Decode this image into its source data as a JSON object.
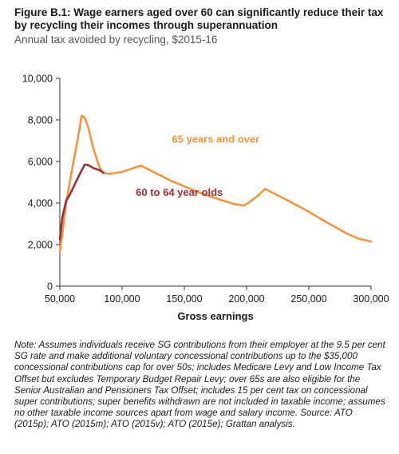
{
  "figure": {
    "title": "Figure B.1: Wage earners aged over 60 can significantly reduce their tax by recycling their incomes through superannuation",
    "subtitle": "Annual tax avoided by recycling, $2015-16"
  },
  "chart_data": {
    "type": "line",
    "xlabel": "Gross earnings",
    "ylabel": "",
    "xlim": [
      50000,
      300000
    ],
    "ylim": [
      0,
      10000
    ],
    "x_ticks": [
      50000,
      100000,
      150000,
      200000,
      250000,
      300000
    ],
    "x_tick_labels": [
      "50,000",
      "100,000",
      "150,000",
      "200,000",
      "250,000",
      "300,000"
    ],
    "y_ticks": [
      0,
      2000,
      4000,
      6000,
      8000,
      10000
    ],
    "y_tick_labels": [
      "0",
      "2,000",
      "4,000",
      "6,000",
      "8,000",
      "10,000"
    ],
    "grid": false,
    "series": [
      {
        "name": "65 years and over",
        "color": "#F3963A",
        "points": [
          [
            50000,
            1650
          ],
          [
            52000,
            2500
          ],
          [
            55000,
            4000
          ],
          [
            60000,
            5700
          ],
          [
            65000,
            7300
          ],
          [
            67500,
            8200
          ],
          [
            70000,
            8100
          ],
          [
            73000,
            7600
          ],
          [
            77000,
            6600
          ],
          [
            82000,
            5700
          ],
          [
            85000,
            5450
          ],
          [
            90000,
            5400
          ],
          [
            100000,
            5500
          ],
          [
            110000,
            5700
          ],
          [
            115000,
            5800
          ],
          [
            120000,
            5650
          ],
          [
            130000,
            5350
          ],
          [
            140000,
            5050
          ],
          [
            150000,
            4800
          ],
          [
            160000,
            4550
          ],
          [
            170000,
            4330
          ],
          [
            180000,
            4140
          ],
          [
            190000,
            3950
          ],
          [
            198000,
            3880
          ],
          [
            202000,
            4030
          ],
          [
            210000,
            4400
          ],
          [
            215000,
            4680
          ],
          [
            220000,
            4520
          ],
          [
            230000,
            4220
          ],
          [
            240000,
            3900
          ],
          [
            250000,
            3580
          ],
          [
            260000,
            3220
          ],
          [
            270000,
            2880
          ],
          [
            280000,
            2550
          ],
          [
            290000,
            2280
          ],
          [
            300000,
            2150
          ]
        ]
      },
      {
        "name": "60 to 64 year olds",
        "color": "#A02D37",
        "points": [
          [
            50000,
            2250
          ],
          [
            52000,
            3300
          ],
          [
            55000,
            4100
          ],
          [
            58000,
            4400
          ],
          [
            62000,
            4900
          ],
          [
            66000,
            5400
          ],
          [
            70000,
            5850
          ],
          [
            73000,
            5820
          ],
          [
            77000,
            5680
          ],
          [
            82000,
            5580
          ],
          [
            85000,
            5450
          ]
        ]
      }
    ],
    "annotations": [
      {
        "text": "65 years and over",
        "color": "#F3963A",
        "x": 140000,
        "y": 6900
      },
      {
        "text": "60 to 64 year olds",
        "color": "#A02D37",
        "x": 111000,
        "y": 4350
      }
    ]
  },
  "note": {
    "text": "Note: Assumes individuals receive SG contributions from their employer at the 9.5 per cent SG rate and make additional voluntary concessional contributions up to the $35,000 concessional contributions cap for over 50s; includes Medicare Levy and Low Income Tax Offset but excludes Temporary Budget Repair Levy; over 65s are also eligible for the Senior Australian and Pensioners Tax Offset; includes 15 per cent tax on concessional super contributions; super benefits withdrawn are not included in taxable income; assumes no other taxable income sources apart from wage and salary income. Source: ATO (2015p); ATO (2015m); ATO (2015v); ATO (2015e); Grattan analysis."
  }
}
